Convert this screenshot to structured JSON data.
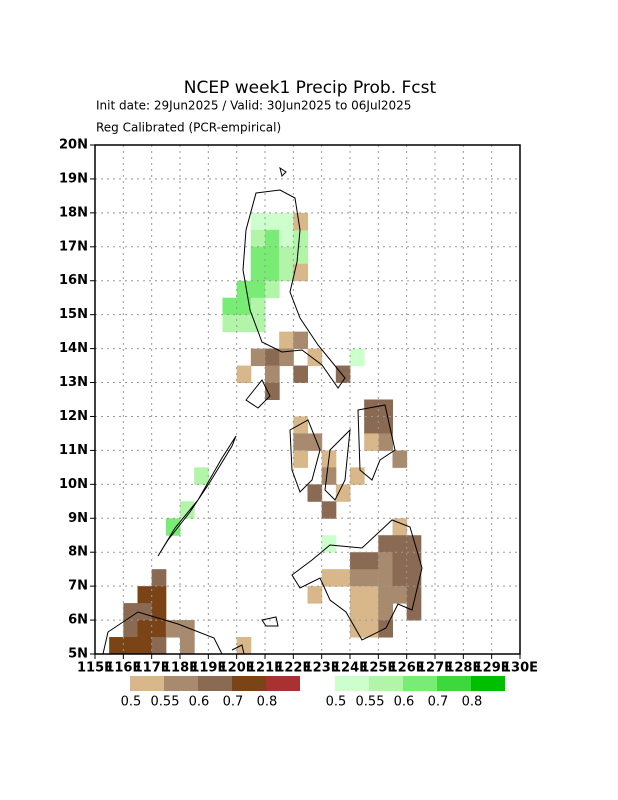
{
  "chart_data": {
    "type": "map",
    "title": "NCEP week1 Precip Prob. Fcst",
    "subtitle": [
      "Init date: 29Jun2025 / Valid: 30Jun2025 to 06Jul2025",
      "Reg Calibrated (PCR-empirical)"
    ],
    "xlim": [
      115,
      130
    ],
    "ylim": [
      5,
      20
    ],
    "xticks": [
      {
        "value": 115,
        "label": "115E"
      },
      {
        "value": 116,
        "label": "116E"
      },
      {
        "value": 117,
        "label": "117E"
      },
      {
        "value": 118,
        "label": "118E"
      },
      {
        "value": 119,
        "label": "119E"
      },
      {
        "value": 120,
        "label": "120E"
      },
      {
        "value": 121,
        "label": "121E"
      },
      {
        "value": 122,
        "label": "122E"
      },
      {
        "value": 123,
        "label": "123E"
      },
      {
        "value": 124,
        "label": "124E"
      },
      {
        "value": 125,
        "label": "125E"
      },
      {
        "value": 126,
        "label": "126E"
      },
      {
        "value": 127,
        "label": "127E"
      },
      {
        "value": 128,
        "label": "128E"
      },
      {
        "value": 129,
        "label": "129E"
      },
      {
        "value": 130,
        "label": "130E"
      }
    ],
    "yticks": [
      {
        "value": 5,
        "label": "5N"
      },
      {
        "value": 6,
        "label": "6N"
      },
      {
        "value": 7,
        "label": "7N"
      },
      {
        "value": 8,
        "label": "8N"
      },
      {
        "value": 9,
        "label": "9N"
      },
      {
        "value": 10,
        "label": "10N"
      },
      {
        "value": 11,
        "label": "11N"
      },
      {
        "value": 12,
        "label": "12N"
      },
      {
        "value": 13,
        "label": "13N"
      },
      {
        "value": 14,
        "label": "14N"
      },
      {
        "value": 15,
        "label": "15N"
      },
      {
        "value": 16,
        "label": "16N"
      },
      {
        "value": 17,
        "label": "17N"
      },
      {
        "value": 18,
        "label": "18N"
      },
      {
        "value": 19,
        "label": "19N"
      },
      {
        "value": 20,
        "label": "20N"
      }
    ],
    "grid": true,
    "cell_size": 0.5,
    "legend": [
      {
        "colors": [
          "#d8b88a",
          "#a88a6e",
          "#8a6a52",
          "#7a4416",
          "#a83232"
        ],
        "labels": [
          "0.5",
          "0.55",
          "0.6",
          "0.7",
          "0.8"
        ]
      },
      {
        "colors": [
          "#ccffcc",
          "#b2f5a8",
          "#78ec74",
          "#3cd83c",
          "#00bf00"
        ],
        "labels": [
          "0.5",
          "0.55",
          "0.6",
          "0.7",
          "0.8"
        ]
      }
    ],
    "cells": [
      {
        "legend": 1,
        "points": [
          [
            120.5,
            17.5,
            0
          ],
          [
            121,
            17.5,
            0
          ],
          [
            121.5,
            17.5,
            0
          ],
          [
            120.5,
            17,
            1
          ],
          [
            121,
            17,
            2
          ],
          [
            121.5,
            17,
            0
          ],
          [
            122,
            17,
            1
          ],
          [
            120.5,
            16.5,
            2
          ],
          [
            121,
            16.5,
            2
          ],
          [
            121.5,
            16.5,
            1
          ],
          [
            122,
            16.5,
            1
          ],
          [
            120.5,
            16,
            2
          ],
          [
            121,
            16,
            2
          ],
          [
            121.5,
            16,
            1
          ],
          [
            120,
            15.5,
            2
          ],
          [
            120.5,
            15.5,
            2
          ],
          [
            121,
            15.5,
            1
          ],
          [
            119.5,
            15,
            2
          ],
          [
            120,
            15,
            2
          ],
          [
            120.5,
            15,
            1
          ],
          [
            119.5,
            14.5,
            1
          ],
          [
            120,
            14.5,
            1
          ],
          [
            120.5,
            14.5,
            1
          ],
          [
            118.5,
            10,
            1
          ],
          [
            117.5,
            8.5,
            2
          ],
          [
            118,
            9,
            1
          ],
          [
            123,
            8,
            0
          ],
          [
            124,
            13.5,
            0
          ],
          [
            123.5,
            13,
            1
          ]
        ]
      },
      {
        "legend": 0,
        "points": [
          [
            122,
            17.5,
            0
          ],
          [
            122,
            16,
            0
          ],
          [
            121.5,
            14,
            0
          ],
          [
            122,
            14,
            1
          ],
          [
            120.5,
            13.5,
            1
          ],
          [
            121,
            13.5,
            2
          ],
          [
            121.5,
            13.5,
            1
          ],
          [
            122.5,
            13.5,
            0
          ],
          [
            122,
            13,
            2
          ],
          [
            120,
            13,
            0
          ],
          [
            121,
            13,
            1
          ],
          [
            121,
            12.5,
            2
          ],
          [
            123.5,
            13,
            2
          ],
          [
            124.5,
            12,
            2
          ],
          [
            125,
            12,
            2
          ],
          [
            124.5,
            11.5,
            2
          ],
          [
            125,
            11.5,
            2
          ],
          [
            125,
            11,
            1
          ],
          [
            124.5,
            11,
            0
          ],
          [
            125.5,
            10.5,
            1
          ],
          [
            122,
            11.5,
            0
          ],
          [
            122,
            11,
            1
          ],
          [
            122,
            10.5,
            0
          ],
          [
            122.5,
            11,
            1
          ],
          [
            123,
            10.5,
            0
          ],
          [
            123,
            10,
            1
          ],
          [
            122.5,
            9.5,
            2
          ],
          [
            123,
            9,
            2
          ],
          [
            123.5,
            9.5,
            0
          ],
          [
            124,
            10,
            0
          ],
          [
            125.5,
            8.5,
            0
          ],
          [
            125,
            8,
            2
          ],
          [
            125.5,
            8,
            2
          ],
          [
            126,
            8,
            2
          ],
          [
            124,
            7.5,
            2
          ],
          [
            124.5,
            7.5,
            2
          ],
          [
            125,
            7.5,
            1
          ],
          [
            125.5,
            7.5,
            2
          ],
          [
            126,
            7.5,
            2
          ],
          [
            123,
            7,
            0
          ],
          [
            123.5,
            7,
            0
          ],
          [
            124,
            7,
            1
          ],
          [
            124.5,
            7,
            1
          ],
          [
            125,
            7,
            1
          ],
          [
            125.5,
            7,
            2
          ],
          [
            126,
            7,
            2
          ],
          [
            122.5,
            6.5,
            0
          ],
          [
            124,
            6.5,
            0
          ],
          [
            124.5,
            6.5,
            0
          ],
          [
            125,
            6.5,
            1
          ],
          [
            125.5,
            6.5,
            1
          ],
          [
            126,
            6.5,
            2
          ],
          [
            124,
            6,
            0
          ],
          [
            124.5,
            6,
            0
          ],
          [
            125,
            6,
            1
          ],
          [
            126,
            6,
            2
          ],
          [
            124,
            5.5,
            0
          ],
          [
            124.5,
            5.5,
            0
          ],
          [
            125,
            5.5,
            2
          ],
          [
            117,
            7,
            2
          ],
          [
            117,
            6.5,
            3
          ],
          [
            116.5,
            6.5,
            3
          ],
          [
            116.5,
            6,
            2
          ],
          [
            117,
            6,
            3
          ],
          [
            116,
            6,
            2
          ],
          [
            116,
            5.5,
            2
          ],
          [
            116.5,
            5.5,
            3
          ],
          [
            117,
            5.5,
            3
          ],
          [
            117.5,
            5.5,
            1
          ],
          [
            118,
            5.5,
            1
          ],
          [
            115.5,
            5,
            3
          ],
          [
            116,
            5,
            3
          ],
          [
            116.5,
            5,
            3
          ],
          [
            117,
            5,
            2
          ],
          [
            118,
            5,
            1
          ],
          [
            120,
            5,
            0
          ]
        ]
      }
    ]
  }
}
